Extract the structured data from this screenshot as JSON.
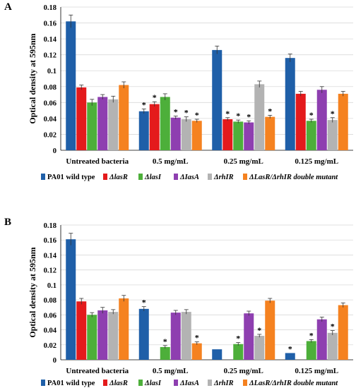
{
  "chart_data": [
    {
      "panel_label": "A",
      "type": "bar",
      "ylabel": "Optical density at 595nm",
      "ylim": [
        0,
        0.18
      ],
      "yticks": [
        "0",
        "0.02",
        "0.04",
        "0.06",
        "0.08",
        "0.1",
        "0.12",
        "0.14",
        "0.16",
        "0.18"
      ],
      "categories": [
        "Untreated bacteria",
        "0.5 mg/mL",
        "0.25 mg/mL",
        "0.125 mg/mL"
      ],
      "legend_position": "bottom",
      "series": [
        {
          "name": "PA01 wild type",
          "color": "#1f5fa8",
          "values": [
            0.162,
            0.049,
            0.126,
            0.116
          ],
          "errors": [
            0.008,
            0.003,
            0.005,
            0.005
          ],
          "stars": [
            false,
            true,
            false,
            false
          ]
        },
        {
          "name": "ΔlasR",
          "color": "#e41a1c",
          "values": [
            0.079,
            0.058,
            0.039,
            0.071
          ],
          "errors": [
            0.003,
            0.003,
            0.002,
            0.003
          ],
          "stars": [
            false,
            true,
            true,
            false
          ]
        },
        {
          "name": "ΔlasI",
          "color": "#4daf3a",
          "values": [
            0.06,
            0.067,
            0.036,
            0.037
          ],
          "errors": [
            0.004,
            0.004,
            0.002,
            0.002
          ],
          "stars": [
            false,
            false,
            true,
            true
          ]
        },
        {
          "name": "ΔIasA",
          "color": "#8e3fb0",
          "values": [
            0.067,
            0.041,
            0.035,
            0.076
          ],
          "errors": [
            0.003,
            0.002,
            0.002,
            0.004
          ],
          "stars": [
            false,
            true,
            true,
            false
          ]
        },
        {
          "name": "ΔrhIR",
          "color": "#b3b3b3",
          "values": [
            0.064,
            0.039,
            0.083,
            0.038
          ],
          "errors": [
            0.004,
            0.003,
            0.004,
            0.003
          ],
          "stars": [
            false,
            true,
            false,
            true
          ]
        },
        {
          "name": "ΔLasR/ΔrhIR double mutant",
          "color": "#f58220",
          "values": [
            0.082,
            0.037,
            0.042,
            0.071
          ],
          "errors": [
            0.004,
            0.002,
            0.002,
            0.003
          ],
          "stars": [
            false,
            true,
            true,
            false
          ]
        }
      ]
    },
    {
      "panel_label": "B",
      "type": "bar",
      "ylabel": "Optical density at 595nm",
      "ylim": [
        0,
        0.18
      ],
      "yticks": [
        "0",
        "0.02",
        "0.04",
        "0.06",
        "0.08",
        "0.1",
        "0.12",
        "0.14",
        "0.16",
        "0.18"
      ],
      "categories": [
        "Untreated bacteria",
        "0.5 mg/mL",
        "0.25 mg/mL",
        "0.125 mg/mL"
      ],
      "legend_position": "bottom",
      "series": [
        {
          "name": "PA01 wild type",
          "color": "#1f5fa8",
          "values": [
            0.161,
            0.068,
            0.014,
            0.009
          ],
          "errors": [
            0.008,
            0.003,
            0.0,
            0.0
          ],
          "stars": [
            false,
            true,
            false,
            true
          ]
        },
        {
          "name": "ΔlasR",
          "color": "#e41a1c",
          "values": [
            0.078,
            0.0,
            0.0,
            0.0
          ],
          "errors": [
            0.004,
            0.0,
            0.0,
            0.0
          ],
          "stars": [
            false,
            false,
            false,
            false
          ]
        },
        {
          "name": "ΔlasI",
          "color": "#4daf3a",
          "values": [
            0.06,
            0.017,
            0.021,
            0.025
          ],
          "errors": [
            0.003,
            0.002,
            0.002,
            0.002
          ],
          "stars": [
            false,
            true,
            true,
            true
          ]
        },
        {
          "name": "ΔIasA",
          "color": "#8e3fb0",
          "values": [
            0.066,
            0.063,
            0.062,
            0.054
          ],
          "errors": [
            0.004,
            0.003,
            0.003,
            0.003
          ],
          "stars": [
            false,
            false,
            false,
            false
          ]
        },
        {
          "name": "ΔrhIR",
          "color": "#b3b3b3",
          "values": [
            0.064,
            0.064,
            0.032,
            0.036
          ],
          "errors": [
            0.003,
            0.003,
            0.002,
            0.003
          ],
          "stars": [
            false,
            false,
            true,
            true
          ]
        },
        {
          "name": "ΔLasR/ΔrhIR double mutant",
          "color": "#f58220",
          "values": [
            0.082,
            0.022,
            0.079,
            0.073
          ],
          "errors": [
            0.004,
            0.002,
            0.003,
            0.003
          ],
          "stars": [
            false,
            true,
            false,
            false
          ]
        }
      ]
    }
  ]
}
